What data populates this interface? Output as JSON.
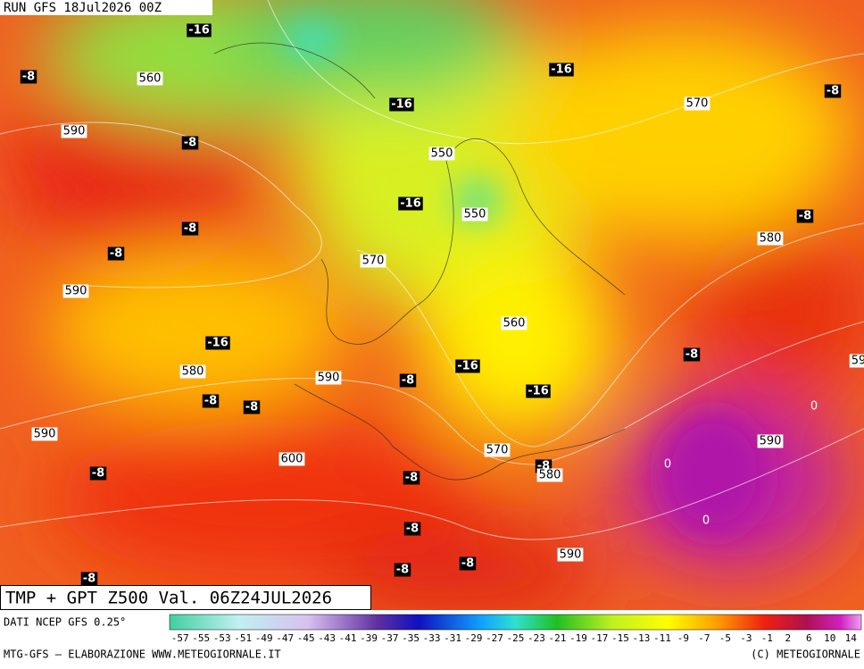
{
  "header": {
    "run": "RUN GFS 18Jul2026 00Z"
  },
  "map": {
    "labels": [
      "-16",
      "-8",
      "560",
      "-16",
      "-8",
      "-16",
      "570",
      "590",
      "-8",
      "550",
      "-16",
      "550",
      "-8",
      "-8",
      "-8",
      "580",
      "570",
      "590",
      "560",
      "-16",
      "-8",
      "580",
      "-16",
      "590",
      "-8",
      "-16",
      "-8",
      "-8",
      "0",
      "590",
      "590",
      "570",
      "600",
      "-8",
      "-8",
      "580",
      "0",
      "-8",
      "0",
      "-8",
      "590",
      "-8",
      "-8",
      "-8",
      "59"
    ]
  },
  "footer": {
    "title": "TMP + GPT Z500 Val. 06Z24JUL2026",
    "source": "DATI NCEP GFS 0.25°",
    "scale": [
      "-57",
      "-55",
      "-53",
      "-51",
      "-49",
      "-47",
      "-45",
      "-43",
      "-41",
      "-39",
      "-37",
      "-35",
      "-33",
      "-31",
      "-29",
      "-27",
      "-25",
      "-23",
      "-21",
      "-19",
      "-17",
      "-15",
      "-13",
      "-11",
      "-9",
      "-7",
      "-5",
      "-3",
      "-1",
      "2",
      "6",
      "10",
      "14"
    ],
    "credit": "MTG-GFS — ELABORAZIONE WWW.METEOGIORNALE.IT",
    "copyright": "(C) METEOGIORNALE"
  }
}
